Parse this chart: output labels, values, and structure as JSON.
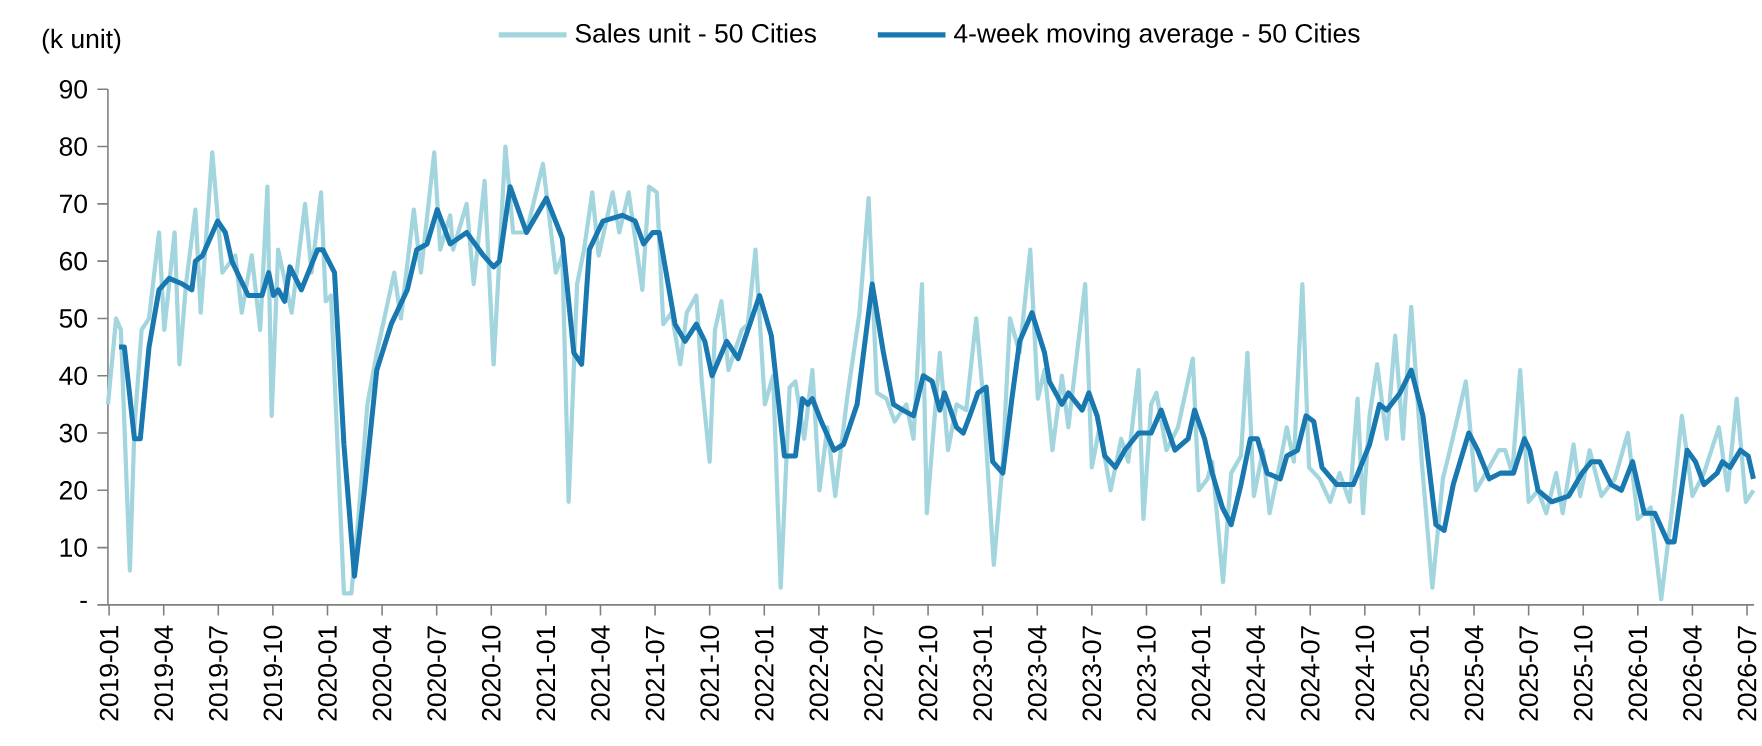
{
  "chart_data": {
    "type": "line",
    "ylabel": "(k unit)",
    "legend": "top",
    "xlim": [
      "2018-12-30",
      "2026-07-13"
    ],
    "xticks": [
      "2019-01",
      "2019-04",
      "2019-07",
      "2019-10",
      "2020-01",
      "2020-04",
      "2020-07",
      "2020-10",
      "2021-01",
      "2021-04",
      "2021-07",
      "2021-10",
      "2022-01",
      "2022-04",
      "2022-07",
      "2022-10",
      "2023-01",
      "2023-04",
      "2023-07",
      "2023-10",
      "2024-01",
      "2024-04",
      "2024-07",
      "2024-10",
      "2025-01",
      "2025-04",
      "2025-07",
      "2025-10",
      "2026-01",
      "2026-04",
      "2026-07"
    ],
    "ylim": [
      0,
      90
    ],
    "yticks": [
      {
        "value": 0,
        "label": "-"
      },
      10,
      20,
      30,
      40,
      50,
      60,
      70,
      80,
      90
    ],
    "series": [
      {
        "name": "Sales unit - 50 Cities",
        "color": "#a3d5df",
        "x": [
          "2018-12-30",
          "2019-01-13",
          "2019-01-21",
          "2019-02-05",
          "2019-02-12",
          "2019-02-23",
          "2019-03-07",
          "2019-03-24",
          "2019-04-02",
          "2019-04-19",
          "2019-04-27",
          "2019-05-08",
          "2019-05-24",
          "2019-06-02",
          "2019-06-21",
          "2019-07-08",
          "2019-07-30",
          "2019-08-10",
          "2019-08-27",
          "2019-09-10",
          "2019-09-22",
          "2019-09-29",
          "2019-10-10",
          "2019-11-02",
          "2019-11-24",
          "2019-12-05",
          "2019-12-21",
          "2019-12-29",
          "2020-01-07",
          "2020-01-29",
          "2020-02-10",
          "2020-02-21",
          "2020-03-07",
          "2020-03-23",
          "2020-04-21",
          "2020-05-02",
          "2020-05-24",
          "2020-06-05",
          "2020-06-27",
          "2020-07-07",
          "2020-07-24",
          "2020-07-29",
          "2020-08-21",
          "2020-09-02",
          "2020-09-20",
          "2020-10-05",
          "2020-10-25",
          "2020-11-07",
          "2020-11-29",
          "2020-12-27",
          "2021-01-18",
          "2021-01-29",
          "2021-02-08",
          "2021-02-21",
          "2021-03-04",
          "2021-03-18",
          "2021-03-29",
          "2021-04-21",
          "2021-05-02",
          "2021-05-18",
          "2021-05-29",
          "2021-06-10",
          "2021-06-21",
          "2021-07-04",
          "2021-07-15",
          "2021-07-29",
          "2021-08-13",
          "2021-08-24",
          "2021-09-09",
          "2021-09-18",
          "2021-10-01",
          "2021-10-10",
          "2021-10-21",
          "2021-11-02",
          "2021-11-24",
          "2021-12-04",
          "2021-12-17",
          "2022-01-02",
          "2022-01-16",
          "2022-01-29",
          "2022-02-12",
          "2022-02-21",
          "2022-03-07",
          "2022-03-21",
          "2022-04-02",
          "2022-04-15",
          "2022-04-28",
          "2022-05-18",
          "2022-06-08",
          "2022-06-23",
          "2022-07-07",
          "2022-07-23",
          "2022-08-06",
          "2022-08-26",
          "2022-09-07",
          "2022-09-21",
          "2022-09-29",
          "2022-10-21",
          "2022-11-04",
          "2022-11-18",
          "2022-12-04",
          "2022-12-21",
          "2023-01-02",
          "2023-01-20",
          "2023-02-04",
          "2023-02-15",
          "2023-03-02",
          "2023-03-20",
          "2023-04-02",
          "2023-04-13",
          "2023-04-26",
          "2023-05-12",
          "2023-05-23",
          "2023-06-20",
          "2023-07-01",
          "2023-07-14",
          "2023-08-02",
          "2023-08-20",
          "2023-09-01",
          "2023-09-18",
          "2023-09-26",
          "2023-10-09",
          "2023-10-18",
          "2023-11-04",
          "2023-11-23",
          "2023-12-18",
          "2023-12-28",
          "2024-01-12",
          "2024-01-20",
          "2024-02-07",
          "2024-02-20",
          "2024-03-07",
          "2024-03-18",
          "2024-03-29",
          "2024-04-13",
          "2024-04-24",
          "2024-05-12",
          "2024-05-23",
          "2024-06-04",
          "2024-06-18",
          "2024-06-29",
          "2024-07-17",
          "2024-08-04",
          "2024-08-20",
          "2024-09-06",
          "2024-09-19",
          "2024-09-28",
          "2024-10-09",
          "2024-10-22",
          "2024-11-07",
          "2024-11-21",
          "2024-12-04",
          "2024-12-18",
          "2025-01-05",
          "2025-01-23",
          "2025-02-09",
          "2025-02-22",
          "2025-03-18",
          "2025-04-04",
          "2025-04-26",
          "2025-05-12",
          "2025-05-23",
          "2025-06-04",
          "2025-06-17",
          "2025-07-01",
          "2025-07-17",
          "2025-07-31",
          "2025-08-17",
          "2025-08-28",
          "2025-09-15",
          "2025-09-26",
          "2025-10-12",
          "2025-11-01",
          "2025-11-23",
          "2025-12-15",
          "2026-01-01",
          "2026-01-23",
          "2026-02-09",
          "2026-02-26",
          "2026-03-14",
          "2026-04-01",
          "2026-04-20",
          "2026-05-15",
          "2026-05-30",
          "2026-06-14",
          "2026-06-29",
          "2026-07-12"
        ],
        "values": [
          35,
          50,
          48,
          6,
          31,
          48,
          50,
          65,
          48,
          65,
          42,
          56,
          69,
          51,
          79,
          58,
          61,
          51,
          61,
          48,
          73,
          33,
          62,
          51,
          70,
          58,
          72,
          53,
          54,
          2,
          2,
          15,
          35,
          44,
          58,
          50,
          69,
          58,
          79,
          62,
          68,
          62,
          70,
          56,
          74,
          42,
          80,
          65,
          65,
          77,
          58,
          61,
          18,
          56,
          62,
          72,
          61,
          72,
          65,
          72,
          64,
          55,
          73,
          72,
          49,
          51,
          42,
          51,
          54,
          39,
          25,
          48,
          53,
          41,
          48,
          49,
          62,
          35,
          40,
          3,
          38,
          39,
          29,
          41,
          20,
          31,
          19,
          36,
          51,
          71,
          37,
          36,
          32,
          35,
          29,
          56,
          16,
          44,
          27,
          35,
          34,
          50,
          36,
          7,
          25,
          50,
          44,
          62,
          36,
          41,
          27,
          40,
          31,
          56,
          24,
          31,
          20,
          29,
          25,
          41,
          15,
          35,
          37,
          27,
          31,
          43,
          20,
          22,
          25,
          4,
          23,
          26,
          44,
          19,
          27,
          16,
          25,
          31,
          25,
          56,
          24,
          22,
          18,
          23,
          18,
          36,
          16,
          33,
          42,
          29,
          47,
          29,
          52,
          25,
          3,
          22,
          28,
          39,
          20,
          24,
          27,
          27,
          23,
          41,
          18,
          20,
          16,
          23,
          16,
          28,
          19,
          27,
          19,
          22,
          30,
          15,
          17,
          1,
          17,
          33,
          19,
          23,
          31,
          20,
          36,
          18,
          20
        ]
      },
      {
        "name": "4-week moving average - 50 Cities",
        "color": "#1a78b0",
        "x": [
          "2019-01-18",
          "2019-01-27",
          "2019-02-12",
          "2019-02-21",
          "2019-03-07",
          "2019-03-24",
          "2019-04-10",
          "2019-05-02",
          "2019-05-18",
          "2019-05-24",
          "2019-06-05",
          "2019-06-30",
          "2019-07-13",
          "2019-07-24",
          "2019-08-21",
          "2019-09-13",
          "2019-09-24",
          "2019-10-02",
          "2019-10-10",
          "2019-10-21",
          "2019-10-30",
          "2019-11-18",
          "2019-12-15",
          "2019-12-24",
          "2020-01-13",
          "2020-01-29",
          "2020-02-15",
          "2020-03-02",
          "2020-03-23",
          "2020-04-16",
          "2020-05-13",
          "2020-05-29",
          "2020-06-15",
          "2020-07-02",
          "2020-07-24",
          "2020-08-21",
          "2020-09-18",
          "2020-10-05",
          "2020-10-15",
          "2020-11-02",
          "2020-11-29",
          "2021-01-02",
          "2021-01-29",
          "2021-02-16",
          "2021-02-28",
          "2021-03-13",
          "2021-04-05",
          "2021-05-07",
          "2021-05-29",
          "2021-06-12",
          "2021-06-27",
          "2021-07-08",
          "2021-08-04",
          "2021-08-21",
          "2021-09-09",
          "2021-09-23",
          "2021-10-05",
          "2021-10-30",
          "2021-11-18",
          "2021-12-24",
          "2022-01-13",
          "2022-02-04",
          "2022-02-21",
          "2022-03-04",
          "2022-03-13",
          "2022-03-21",
          "2022-04-05",
          "2022-04-26",
          "2022-05-12",
          "2022-06-04",
          "2022-06-29",
          "2022-07-18",
          "2022-08-04",
          "2022-08-20",
          "2022-09-07",
          "2022-09-23",
          "2022-10-08",
          "2022-10-21",
          "2022-10-29",
          "2022-11-18",
          "2022-11-29",
          "2022-12-10",
          "2022-12-24",
          "2023-01-07",
          "2023-01-18",
          "2023-02-04",
          "2023-02-18",
          "2023-03-02",
          "2023-03-23",
          "2023-04-13",
          "2023-04-21",
          "2023-05-12",
          "2023-05-23",
          "2023-06-15",
          "2023-06-26",
          "2023-07-10",
          "2023-07-23",
          "2023-08-10",
          "2023-08-26",
          "2023-09-18",
          "2023-10-09",
          "2023-10-26",
          "2023-11-18",
          "2023-12-10",
          "2023-12-21",
          "2024-01-07",
          "2024-01-20",
          "2024-02-06",
          "2024-02-20",
          "2024-03-07",
          "2024-03-23",
          "2024-04-04",
          "2024-04-20",
          "2024-05-12",
          "2024-05-23",
          "2024-06-10",
          "2024-06-24",
          "2024-07-07",
          "2024-07-21",
          "2024-08-15",
          "2024-09-12",
          "2024-10-09",
          "2024-10-26",
          "2024-11-07",
          "2024-11-29",
          "2024-12-18",
          "2025-01-07",
          "2025-01-29",
          "2025-02-11",
          "2025-02-25",
          "2025-03-23",
          "2025-04-07",
          "2025-04-26",
          "2025-05-15",
          "2025-06-06",
          "2025-06-24",
          "2025-07-03",
          "2025-07-17",
          "2025-08-09",
          "2025-09-07",
          "2025-09-29",
          "2025-10-15",
          "2025-10-29",
          "2025-11-17",
          "2025-12-04",
          "2025-12-23",
          "2026-01-12",
          "2026-01-30",
          "2026-02-19",
          "2026-03-01",
          "2026-03-23",
          "2026-04-06",
          "2026-04-20",
          "2026-05-12",
          "2026-05-21",
          "2026-06-03",
          "2026-06-20",
          "2026-07-03",
          "2026-07-12"
        ],
        "values": [
          45,
          45,
          29,
          29,
          45,
          55,
          57,
          56,
          55,
          60,
          61,
          67,
          65,
          60,
          54,
          54,
          58,
          54,
          55,
          53,
          59,
          55,
          62,
          62,
          58,
          28,
          5,
          20,
          41,
          49,
          55,
          62,
          63,
          69,
          63,
          65,
          61,
          59,
          60,
          73,
          65,
          71,
          64,
          44,
          42,
          62,
          67,
          68,
          67,
          63,
          65,
          65,
          49,
          46,
          49,
          46,
          40,
          46,
          43,
          54,
          47,
          26,
          26,
          36,
          35,
          36,
          32,
          27,
          28,
          35,
          56,
          44,
          35,
          34,
          33,
          40,
          39,
          34,
          37,
          31,
          30,
          33,
          37,
          38,
          25,
          23,
          36,
          46,
          51,
          44,
          39,
          35,
          37,
          34,
          37,
          33,
          26,
          24,
          27,
          30,
          30,
          34,
          27,
          29,
          34,
          29,
          23,
          17,
          14,
          21,
          29,
          29,
          23,
          22,
          26,
          27,
          33,
          32,
          24,
          21,
          21,
          28,
          35,
          34,
          37,
          41,
          33,
          14,
          13,
          21,
          30,
          27,
          22,
          23,
          23,
          29,
          27,
          20,
          18,
          19,
          23,
          25,
          25,
          21,
          20,
          25,
          16,
          16,
          11,
          11,
          27,
          25,
          21,
          23,
          25,
          24,
          27,
          26,
          22
        ]
      }
    ]
  }
}
